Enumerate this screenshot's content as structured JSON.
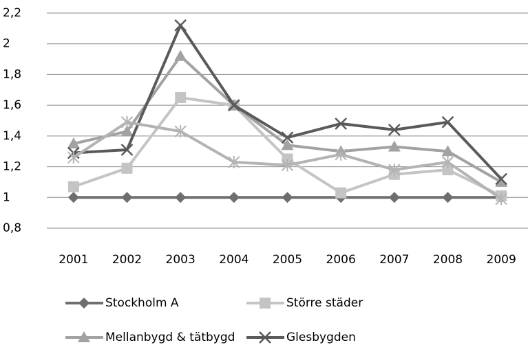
{
  "chart_data": {
    "type": "line",
    "categories": [
      "2001",
      "2002",
      "2003",
      "2004",
      "2005",
      "2006",
      "2007",
      "2008",
      "2009"
    ],
    "series": [
      {
        "name": "Stockholm A",
        "color": "#6e6e6e",
        "marker": "diamond",
        "values": [
          1,
          1,
          1,
          1,
          1,
          1,
          1,
          1,
          1
        ]
      },
      {
        "name": "Större städer",
        "color": "#c4c4c4",
        "marker": "square",
        "values": [
          1.07,
          1.19,
          1.65,
          1.6,
          1.25,
          1.03,
          1.15,
          1.18,
          1.01
        ]
      },
      {
        "name": "Mellanbygd & tätbygd",
        "color": "#a2a2a2",
        "marker": "triangle",
        "values": [
          1.35,
          1.43,
          1.92,
          1.6,
          1.34,
          1.3,
          1.33,
          1.3,
          1.1
        ]
      },
      {
        "name": "Glesbygden",
        "color": "#5a5a5a",
        "marker": "x",
        "values": [
          1.29,
          1.31,
          2.12,
          1.6,
          1.39,
          1.48,
          1.44,
          1.49,
          1.12
        ]
      },
      {
        "color": "#b3b3b3",
        "marker": "star",
        "values": [
          1.26,
          1.49,
          1.43,
          1.23,
          1.21,
          1.28,
          1.18,
          1.23,
          0.99
        ]
      }
    ],
    "ylim": [
      0.8,
      2.2
    ],
    "yticks": [
      {
        "value": 0.8,
        "label": "0,8"
      },
      1,
      {
        "value": 1.2,
        "label": "1,2"
      },
      {
        "value": 1.4,
        "label": "1,4"
      },
      {
        "value": 1.6,
        "label": "1,6"
      },
      {
        "value": 1.8,
        "label": "1,8"
      },
      2,
      {
        "value": 2.2,
        "label": "2,2"
      }
    ],
    "grid": true
  }
}
